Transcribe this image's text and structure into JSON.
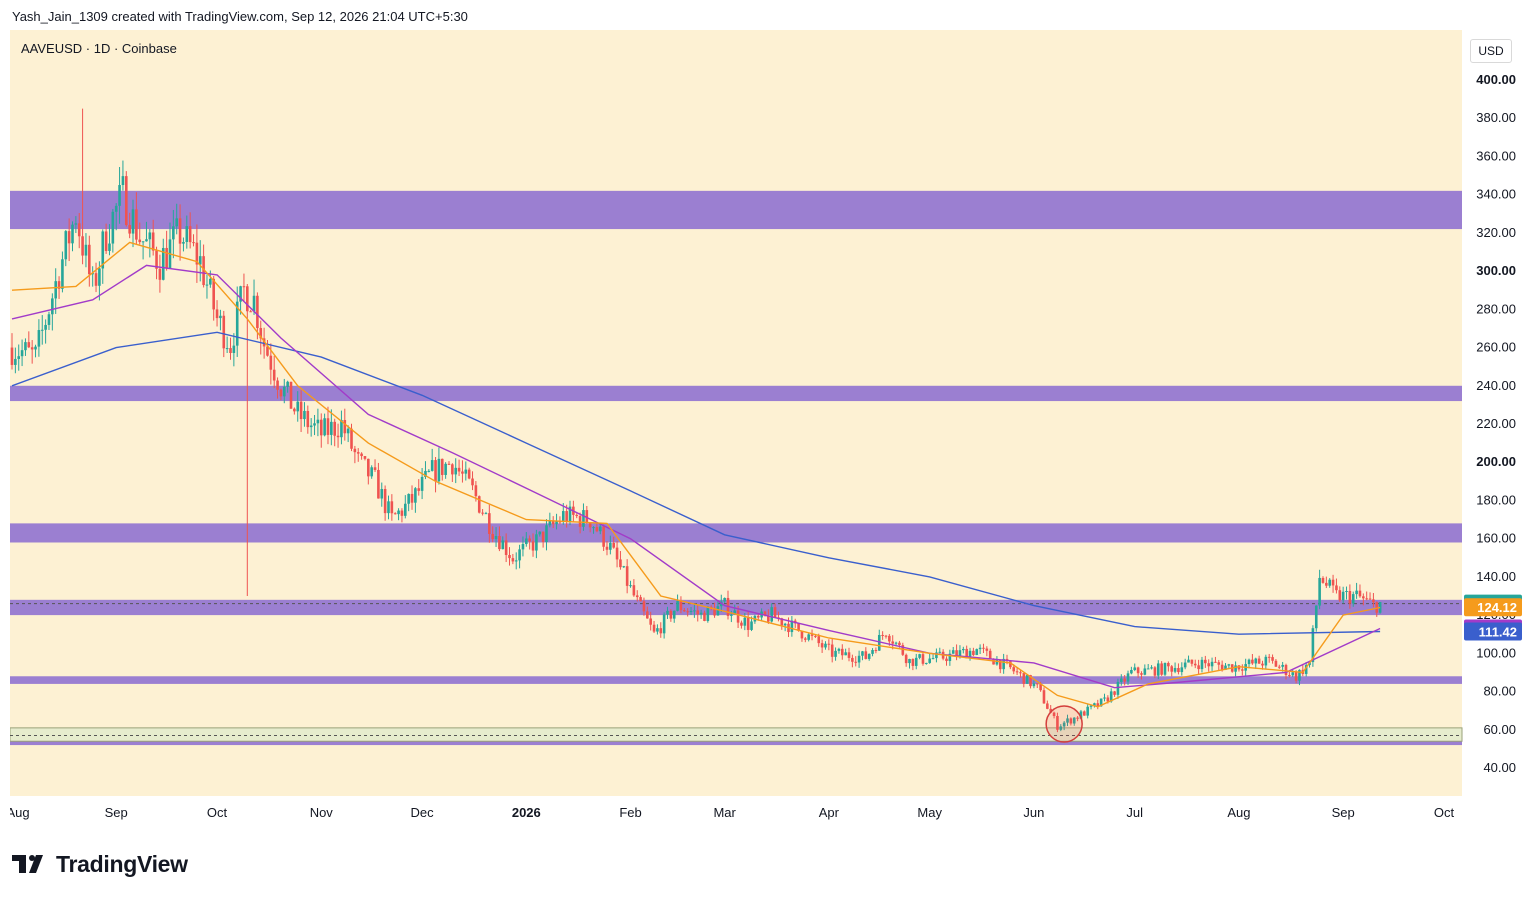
{
  "header": {
    "attribution": "Yash_Jain_1309 created with TradingView.com, Sep 12, 2026 21:04 UTC+5:30"
  },
  "chart": {
    "symbol_label": "AAVEUSD · 1D · Coinbase",
    "currency": "USD"
  },
  "footer": {
    "brand": "TradingView"
  },
  "colors": {
    "background": "#fdf1d3",
    "zone": "#9b7fd1",
    "ema_fast": "#f59b1c",
    "ema_mid": "#a23bc9",
    "ema_slow": "#3a5fcd",
    "bull": "#26a69a",
    "bear": "#ef5350"
  },
  "chart_data": {
    "type": "candlestick",
    "y_axis": {
      "ticks": [
        40,
        60,
        80,
        100,
        120,
        140,
        160,
        180,
        200,
        220,
        240,
        260,
        280,
        300,
        320,
        340,
        360,
        380,
        400
      ],
      "bold_ticks": [
        200,
        300,
        400
      ]
    },
    "x_axis": {
      "labels": [
        {
          "label": "Aug",
          "date": "2025-08-01"
        },
        {
          "label": "Sep",
          "date": "2025-09-01"
        },
        {
          "label": "Oct",
          "date": "2025-10-01"
        },
        {
          "label": "Nov",
          "date": "2025-11-01"
        },
        {
          "label": "Dec",
          "date": "2025-12-01"
        },
        {
          "label": "2026",
          "date": "2026-01-01",
          "bold": true
        },
        {
          "label": "Feb",
          "date": "2026-02-01"
        },
        {
          "label": "Mar",
          "date": "2026-03-01"
        },
        {
          "label": "Apr",
          "date": "2026-04-01"
        },
        {
          "label": "May",
          "date": "2026-05-01"
        },
        {
          "label": "Jun",
          "date": "2026-06-01"
        },
        {
          "label": "Jul",
          "date": "2026-07-01"
        },
        {
          "label": "Aug",
          "date": "2026-08-01"
        },
        {
          "label": "Sep",
          "date": "2026-09-01"
        },
        {
          "label": "Oct",
          "date": "2026-10-01"
        }
      ]
    },
    "price_labels": [
      {
        "value": "125.98",
        "price": 125.98,
        "color": "#26a69a"
      },
      {
        "value": "124.12",
        "price": 124.12,
        "color": "#f59b1c"
      },
      {
        "value": "112.99",
        "price": 112.99,
        "color": "#a23bc9"
      },
      {
        "value": "111.42",
        "price": 111.42,
        "color": "#3a5fcd"
      }
    ],
    "zones": [
      {
        "from": 322,
        "to": 342
      },
      {
        "from": 232,
        "to": 240
      },
      {
        "from": 158,
        "to": 168
      },
      {
        "from": 120,
        "to": 128
      },
      {
        "from": 84,
        "to": 88
      },
      {
        "from": 52,
        "to": 55
      }
    ],
    "support_box": {
      "from": 54,
      "to": 61
    },
    "dashed_lines": [
      {
        "price": 57
      },
      {
        "price": 126
      }
    ],
    "highlight_circle": {
      "date": "2026-06-10",
      "price": 63
    },
    "closes": [
      [
        "2025-08-01",
        260
      ],
      [
        "2025-08-08",
        255
      ],
      [
        "2025-08-15",
        300
      ],
      [
        "2025-08-20",
        330
      ],
      [
        "2025-08-25",
        290
      ],
      [
        "2025-08-29",
        320
      ],
      [
        "2025-09-03",
        340
      ],
      [
        "2025-09-08",
        318
      ],
      [
        "2025-09-14",
        305
      ],
      [
        "2025-09-20",
        320
      ],
      [
        "2025-09-26",
        305
      ],
      [
        "2025-10-01",
        275
      ],
      [
        "2025-10-05",
        262
      ],
      [
        "2025-10-09",
        290
      ],
      [
        "2025-10-12",
        285
      ],
      [
        "2025-10-15",
        262
      ],
      [
        "2025-10-20",
        240
      ],
      [
        "2025-10-25",
        225
      ],
      [
        "2025-11-01",
        215
      ],
      [
        "2025-11-07",
        220
      ],
      [
        "2025-11-12",
        200
      ],
      [
        "2025-11-17",
        190
      ],
      [
        "2025-11-22",
        170
      ],
      [
        "2025-11-28",
        180
      ],
      [
        "2025-12-04",
        195
      ],
      [
        "2025-12-10",
        200
      ],
      [
        "2025-12-16",
        185
      ],
      [
        "2025-12-22",
        165
      ],
      [
        "2025-12-28",
        150
      ],
      [
        "2026-01-05",
        160
      ],
      [
        "2026-01-12",
        172
      ],
      [
        "2026-01-20",
        170
      ],
      [
        "2026-01-26",
        155
      ],
      [
        "2026-02-02",
        130
      ],
      [
        "2026-02-08",
        110
      ],
      [
        "2026-02-15",
        125
      ],
      [
        "2026-02-22",
        120
      ],
      [
        "2026-03-01",
        125
      ],
      [
        "2026-03-08",
        115
      ],
      [
        "2026-03-15",
        120
      ],
      [
        "2026-03-25",
        110
      ],
      [
        "2026-04-02",
        100
      ],
      [
        "2026-04-12",
        98
      ],
      [
        "2026-04-18",
        112
      ],
      [
        "2026-04-25",
        96
      ],
      [
        "2026-05-05",
        98
      ],
      [
        "2026-05-15",
        102
      ],
      [
        "2026-05-25",
        92
      ],
      [
        "2026-06-02",
        82
      ],
      [
        "2026-06-08",
        62
      ],
      [
        "2026-06-14",
        67
      ],
      [
        "2026-06-22",
        75
      ],
      [
        "2026-06-30",
        90
      ],
      [
        "2026-07-10",
        92
      ],
      [
        "2026-07-20",
        95
      ],
      [
        "2026-07-30",
        93
      ],
      [
        "2026-08-10",
        96
      ],
      [
        "2026-08-18",
        88
      ],
      [
        "2026-08-22",
        95
      ],
      [
        "2026-08-25",
        140
      ],
      [
        "2026-08-30",
        130
      ],
      [
        "2026-09-05",
        130
      ],
      [
        "2026-09-10",
        125
      ],
      [
        "2026-09-12",
        126
      ]
    ],
    "ema_fast": [
      [
        "2025-08-01",
        290
      ],
      [
        "2025-08-20",
        292
      ],
      [
        "2025-09-05",
        315
      ],
      [
        "2025-09-25",
        305
      ],
      [
        "2025-10-10",
        275
      ],
      [
        "2025-10-25",
        240
      ],
      [
        "2025-11-15",
        210
      ],
      [
        "2025-12-05",
        190
      ],
      [
        "2026-01-01",
        170
      ],
      [
        "2026-01-25",
        168
      ],
      [
        "2026-02-10",
        130
      ],
      [
        "2026-03-01",
        122
      ],
      [
        "2026-04-01",
        108
      ],
      [
        "2026-05-01",
        100
      ],
      [
        "2026-05-25",
        95
      ],
      [
        "2026-06-08",
        78
      ],
      [
        "2026-06-20",
        72
      ],
      [
        "2026-07-05",
        84
      ],
      [
        "2026-08-01",
        93
      ],
      [
        "2026-08-20",
        90
      ],
      [
        "2026-09-01",
        120
      ],
      [
        "2026-09-12",
        124
      ]
    ],
    "ema_mid": [
      [
        "2025-08-01",
        275
      ],
      [
        "2025-08-25",
        285
      ],
      [
        "2025-09-10",
        303
      ],
      [
        "2025-10-01",
        298
      ],
      [
        "2025-10-20",
        265
      ],
      [
        "2025-11-15",
        225
      ],
      [
        "2025-12-10",
        205
      ],
      [
        "2026-01-05",
        183
      ],
      [
        "2026-02-01",
        160
      ],
      [
        "2026-03-01",
        125
      ],
      [
        "2026-04-01",
        112
      ],
      [
        "2026-05-01",
        100
      ],
      [
        "2026-06-01",
        95
      ],
      [
        "2026-06-25",
        82
      ],
      [
        "2026-07-15",
        85
      ],
      [
        "2026-08-15",
        90
      ],
      [
        "2026-09-12",
        113
      ]
    ],
    "ema_slow": [
      [
        "2025-08-01",
        240
      ],
      [
        "2025-09-01",
        260
      ],
      [
        "2025-10-01",
        268
      ],
      [
        "2025-11-01",
        255
      ],
      [
        "2025-12-01",
        235
      ],
      [
        "2026-01-01",
        210
      ],
      [
        "2026-02-01",
        185
      ],
      [
        "2026-03-01",
        162
      ],
      [
        "2026-04-01",
        150
      ],
      [
        "2026-05-01",
        140
      ],
      [
        "2026-06-01",
        125
      ],
      [
        "2026-07-01",
        114
      ],
      [
        "2026-08-01",
        110
      ],
      [
        "2026-09-12",
        111.42
      ]
    ],
    "candle_notes": "Daily candles follow the closing path above; wicks reach 385 in late Aug 2025 and 130 on the mid-Oct 2025 flash crash."
  }
}
